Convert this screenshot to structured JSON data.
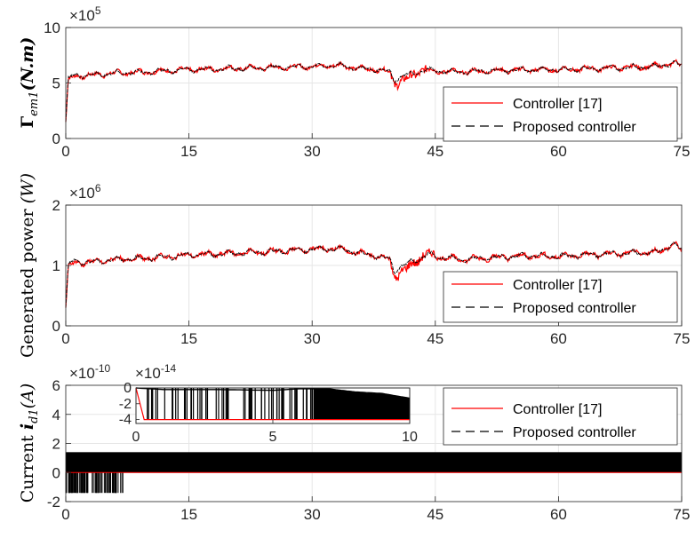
{
  "chart_data": [
    {
      "type": "line",
      "ylabel": "Γem1(N.m)",
      "ylabel_main": "Γ",
      "ylabel_sub": "em1",
      "ylabel_rest": "(N.m)",
      "exponent_base": "×10",
      "exponent_power": "5",
      "xlim": [
        0,
        75
      ],
      "ylim": [
        0,
        10
      ],
      "xticks": [
        "0",
        "15",
        "30",
        "45",
        "60",
        "75"
      ],
      "yticks": [
        "0",
        "5",
        "10"
      ],
      "grid": true,
      "legend_position": "bottom-right",
      "series": [
        {
          "name": "Controller [17]",
          "color": "#ff0000",
          "style": "solid",
          "x": [
            0,
            0.3,
            1,
            3,
            6,
            10,
            15,
            20,
            25,
            30,
            33,
            36,
            38,
            39.5,
            40,
            41,
            42,
            43,
            44,
            45,
            48,
            52,
            56,
            60,
            64,
            68,
            72,
            74,
            75
          ],
          "y": [
            1.5,
            5.2,
            5.6,
            5.7,
            5.9,
            6.0,
            6.2,
            6.3,
            6.4,
            6.5,
            6.6,
            6.3,
            6.2,
            6.0,
            4.9,
            5.2,
            5.6,
            6.0,
            6.3,
            6.1,
            6.0,
            6.1,
            6.2,
            6.2,
            6.3,
            6.4,
            6.5,
            6.8,
            6.6
          ]
        },
        {
          "name": "Proposed controller",
          "color": "#000000",
          "style": "dashed",
          "x": [
            0,
            0.3,
            1,
            3,
            6,
            10,
            15,
            20,
            25,
            30,
            33,
            36,
            38,
            39.5,
            40,
            41,
            42,
            43,
            44,
            45,
            48,
            52,
            56,
            60,
            64,
            68,
            72,
            74,
            75
          ],
          "y": [
            1.5,
            5.4,
            5.7,
            5.7,
            5.9,
            6.0,
            6.2,
            6.3,
            6.4,
            6.5,
            6.6,
            6.3,
            6.2,
            6.0,
            5.3,
            5.6,
            5.8,
            6.0,
            6.2,
            6.1,
            6.0,
            6.1,
            6.2,
            6.2,
            6.3,
            6.4,
            6.5,
            6.8,
            6.6
          ]
        }
      ]
    },
    {
      "type": "line",
      "ylabel": "Generated power (W)",
      "ylabel_main": "Generated power ",
      "ylabel_sub": "",
      "ylabel_rest": "(W)",
      "exponent_base": "×10",
      "exponent_power": "6",
      "xlim": [
        0,
        75
      ],
      "ylim": [
        0,
        2
      ],
      "xticks": [
        "0",
        "15",
        "30",
        "45",
        "60",
        "75"
      ],
      "yticks": [
        "0",
        "1",
        "2"
      ],
      "grid": true,
      "legend_position": "bottom-right",
      "series": [
        {
          "name": "Controller [17]",
          "color": "#ff0000",
          "style": "solid",
          "x": [
            0,
            0.3,
            1,
            3,
            6,
            10,
            15,
            20,
            25,
            30,
            33,
            36,
            38,
            39.5,
            40,
            41,
            42,
            43,
            44,
            45,
            48,
            52,
            56,
            60,
            64,
            68,
            72,
            74,
            75
          ],
          "y": [
            0.3,
            0.95,
            1.05,
            1.05,
            1.1,
            1.12,
            1.17,
            1.2,
            1.23,
            1.27,
            1.28,
            1.2,
            1.15,
            1.1,
            0.8,
            0.9,
            1.0,
            1.1,
            1.2,
            1.15,
            1.1,
            1.13,
            1.16,
            1.15,
            1.18,
            1.2,
            1.22,
            1.35,
            1.25
          ]
        },
        {
          "name": "Proposed controller",
          "color": "#000000",
          "style": "dashed",
          "x": [
            0,
            0.3,
            1,
            3,
            6,
            10,
            15,
            20,
            25,
            30,
            33,
            36,
            38,
            39.5,
            40,
            41,
            42,
            43,
            44,
            45,
            48,
            52,
            56,
            60,
            64,
            68,
            72,
            74,
            75
          ],
          "y": [
            0.3,
            1.0,
            1.08,
            1.05,
            1.1,
            1.12,
            1.17,
            1.2,
            1.23,
            1.27,
            1.28,
            1.2,
            1.15,
            1.1,
            0.9,
            1.0,
            1.05,
            1.1,
            1.18,
            1.15,
            1.1,
            1.13,
            1.16,
            1.15,
            1.18,
            1.2,
            1.22,
            1.35,
            1.25
          ]
        }
      ]
    },
    {
      "type": "line",
      "ylabel": "Current id1(A)",
      "ylabel_main": "Current ",
      "ylabel_sub": "d1",
      "ylabel_rest": "(A)",
      "ylabel_italic": "i",
      "exponent_base": "×10",
      "exponent_power": "-10",
      "xlim": [
        0,
        75
      ],
      "ylim": [
        -2,
        6
      ],
      "xticks": [
        "0",
        "15",
        "30",
        "45",
        "60",
        "75"
      ],
      "yticks": [
        "-2",
        "0",
        "2",
        "4",
        "6"
      ],
      "grid": true,
      "legend_position": "top-right",
      "series": [
        {
          "name": "Controller [17]",
          "color": "#ff0000",
          "style": "solid",
          "x": [
            0,
            75
          ],
          "y": [
            0,
            0
          ]
        },
        {
          "name": "Proposed controller",
          "color": "#000000",
          "style": "dashed",
          "band_x": [
            0,
            75
          ],
          "band_y": [
            0,
            1.4
          ],
          "lower_band_x": [
            0,
            7
          ],
          "lower_band_y": [
            -1.4,
            0
          ]
        }
      ],
      "inset": {
        "exponent_base": "×10",
        "exponent_power": "-14",
        "xlim": [
          0,
          10
        ],
        "ylim": [
          -4.5,
          0
        ],
        "xticks": [
          "0",
          "5",
          "10"
        ],
        "yticks": [
          "0",
          "-2",
          "-4"
        ],
        "red_line": {
          "x": [
            0,
            0.3,
            10
          ],
          "y": [
            0,
            -4,
            -4
          ]
        },
        "black_envelope": {
          "x": [
            0,
            1,
            3,
            5,
            6,
            7,
            8,
            9,
            9.5,
            10
          ],
          "y": [
            0,
            -0.2,
            -0.2,
            -0.3,
            -0.1,
            -0.1,
            -0.5,
            -0.7,
            -1.0,
            -1.3
          ]
        }
      }
    }
  ],
  "legend": {
    "item1": "Controller [17]",
    "item2": "Proposed controller"
  }
}
